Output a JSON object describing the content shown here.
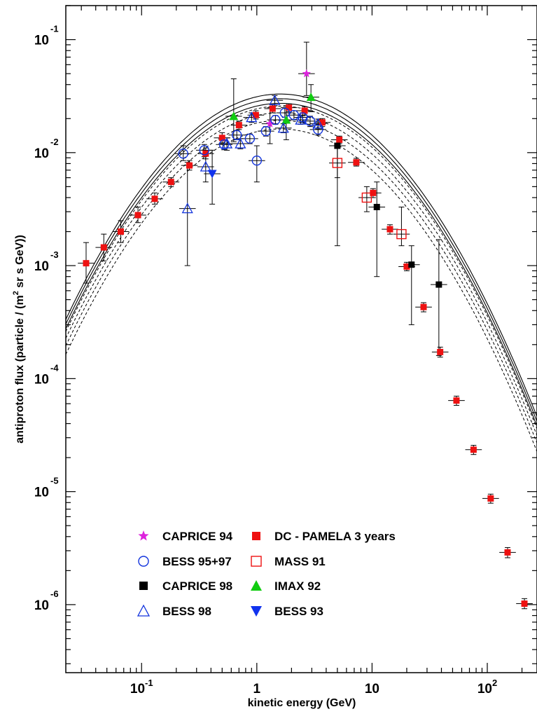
{
  "chart_data": {
    "type": "scatter",
    "xlabel": "kinetic energy (GeV)",
    "ylabel_parts": [
      "antiproton flux (particle / (m",
      "2",
      " sr s GeV))"
    ],
    "x_scale": "log",
    "y_scale": "log",
    "xlim": [
      0.022,
      270
    ],
    "ylim": [
      2.5e-07,
      0.2
    ],
    "x_ticks": [
      {
        "value": 0.1,
        "base": "10",
        "exp": "-1"
      },
      {
        "value": 1,
        "base": "1",
        "exp": ""
      },
      {
        "value": 10,
        "base": "10",
        "exp": ""
      },
      {
        "value": 100,
        "base": "10",
        "exp": "2"
      }
    ],
    "y_ticks": [
      {
        "value": 1e-06,
        "base": "10",
        "exp": "-6"
      },
      {
        "value": 1e-05,
        "base": "10",
        "exp": "-5"
      },
      {
        "value": 0.0001,
        "base": "10",
        "exp": "-4"
      },
      {
        "value": 0.001,
        "base": "10",
        "exp": "-3"
      },
      {
        "value": 0.01,
        "base": "10",
        "exp": "-2"
      },
      {
        "value": 0.1,
        "base": "10",
        "exp": "-1"
      }
    ],
    "grid": false,
    "legend_position": "bottom-left",
    "series": [
      {
        "name": "DC - PAMELA 3 years",
        "marker": "filled-square",
        "color": "#ee1111",
        "points": [
          [
            0.033,
            0.00105,
            0.0007,
            0.0016
          ],
          [
            0.047,
            0.00145,
            0.0011,
            0.0019
          ],
          [
            0.066,
            0.002,
            0.0016,
            0.0025
          ],
          [
            0.093,
            0.0028,
            0.0024,
            0.0033
          ],
          [
            0.13,
            0.0039,
            0.0035,
            0.0044
          ],
          [
            0.18,
            0.0055,
            0.005,
            0.006
          ],
          [
            0.26,
            0.0077,
            0.007,
            0.0085
          ],
          [
            0.36,
            0.0098,
            0.0088,
            0.011
          ],
          [
            0.5,
            0.0135,
            0.0122,
            0.015
          ],
          [
            0.7,
            0.0175,
            0.016,
            0.019
          ],
          [
            0.98,
            0.0215,
            0.0198,
            0.0235
          ],
          [
            1.37,
            0.0245,
            0.0225,
            0.0265
          ],
          [
            1.9,
            0.025,
            0.023,
            0.027
          ],
          [
            2.6,
            0.0235,
            0.0215,
            0.0255
          ],
          [
            3.7,
            0.0185,
            0.017,
            0.02
          ],
          [
            5.2,
            0.013,
            0.012,
            0.014
          ],
          [
            7.3,
            0.0082,
            0.0076,
            0.0089
          ],
          [
            10.2,
            0.0044,
            0.004,
            0.0048
          ],
          [
            14.3,
            0.0021,
            0.0019,
            0.0023
          ],
          [
            20,
            0.00098,
            0.0009,
            0.00107
          ],
          [
            28,
            0.00043,
            0.00039,
            0.00047
          ],
          [
            39,
            0.000172,
            0.000155,
            0.00019
          ],
          [
            54,
            6.4e-05,
            5.8e-05,
            7e-05
          ],
          [
            76,
            2.35e-05,
            2.13e-05,
            2.57e-05
          ],
          [
            107,
            8.7e-06,
            7.9e-06,
            9.5e-06
          ],
          [
            150,
            2.9e-06,
            2.6e-06,
            3.2e-06
          ],
          [
            210,
            1.02e-06,
            9.2e-07,
            1.13e-06
          ]
        ]
      },
      {
        "name": "CAPRICE 94",
        "marker": "star",
        "color": "#dd22dd",
        "points": [
          [
            2.7,
            0.05,
            0.032,
            0.095
          ],
          [
            1.3,
            0.018,
            0.012,
            0.025
          ]
        ]
      },
      {
        "name": "BESS 95+97",
        "marker": "open-circle",
        "color": "#1133dd",
        "points": [
          [
            0.23,
            0.0098,
            0.0085,
            0.0115
          ],
          [
            0.35,
            0.0105,
            0.0092,
            0.0118
          ],
          [
            0.52,
            0.0118,
            0.0106,
            0.013
          ],
          [
            0.67,
            0.0143,
            0.013,
            0.0157
          ],
          [
            0.87,
            0.0133,
            0.012,
            0.0146
          ],
          [
            1.0,
            0.0085,
            0.0055,
            0.0115
          ],
          [
            1.2,
            0.0155,
            0.014,
            0.017
          ],
          [
            1.45,
            0.0195,
            0.0178,
            0.0213
          ],
          [
            1.75,
            0.0225,
            0.0205,
            0.0245
          ],
          [
            2.1,
            0.0215,
            0.0195,
            0.0235
          ],
          [
            2.5,
            0.0205,
            0.0185,
            0.0225
          ],
          [
            2.9,
            0.019,
            0.017,
            0.021
          ],
          [
            3.4,
            0.016,
            0.0143,
            0.0178
          ]
        ]
      },
      {
        "name": "CAPRICE 98",
        "marker": "filled-square",
        "color": "#000000",
        "points": [
          [
            5.0,
            0.0115,
            0.0015,
            0.013
          ],
          [
            11,
            0.0033,
            0.0008,
            0.0055
          ],
          [
            22,
            0.00102,
            0.0003,
            0.0015
          ],
          [
            38,
            0.00068,
            0.00016,
            0.0017
          ]
        ]
      },
      {
        "name": "MASS 91",
        "marker": "open-square",
        "color": "#ee1111",
        "points": [
          [
            5.0,
            0.0081,
            0.006,
            0.011
          ],
          [
            9,
            0.004,
            0.003,
            0.005
          ],
          [
            18,
            0.0019,
            0.0015,
            0.0033
          ]
        ]
      },
      {
        "name": "IMAX 92",
        "marker": "filled-triangle-up",
        "color": "#11cc11",
        "points": [
          [
            0.63,
            0.021,
            0.0125,
            0.045
          ],
          [
            1.8,
            0.0195,
            0.013,
            0.026
          ],
          [
            2.95,
            0.031,
            0.023,
            0.04
          ]
        ]
      },
      {
        "name": "BESS 98",
        "marker": "open-triangle-up",
        "color": "#1133dd",
        "points": [
          [
            0.25,
            0.0032,
            0.001,
            0.0082
          ],
          [
            0.36,
            0.0075,
            0.0055,
            0.0095
          ],
          [
            0.55,
            0.012,
            0.0105,
            0.0135
          ],
          [
            0.72,
            0.012,
            0.0108,
            0.0133
          ],
          [
            0.9,
            0.0205,
            0.0185,
            0.0225
          ],
          [
            1.43,
            0.029,
            0.026,
            0.032
          ],
          [
            1.7,
            0.0165,
            0.015,
            0.018
          ],
          [
            2.4,
            0.0195,
            0.0178,
            0.0212
          ],
          [
            3.4,
            0.018,
            0.0162,
            0.0198
          ]
        ]
      },
      {
        "name": "BESS 93",
        "marker": "filled-triangle-down",
        "color": "#1133ee",
        "points": [
          [
            0.41,
            0.0065,
            0.0035,
            0.0105
          ]
        ]
      }
    ],
    "model_curves": {
      "solid_peaks": [
        0.033,
        0.03,
        0.0273
      ],
      "dashed_peaks": [
        0.0258,
        0.0225,
        0.0193,
        0.0162
      ],
      "peak_energy": 1.6
    },
    "legend": [
      {
        "series": 1,
        "label": "CAPRICE 94"
      },
      {
        "series": 0,
        "label": "DC - PAMELA 3 years"
      },
      {
        "series": 2,
        "label": "BESS 95+97"
      },
      {
        "series": 4,
        "label": "MASS 91"
      },
      {
        "series": 3,
        "label": "CAPRICE 98"
      },
      {
        "series": 5,
        "label": "IMAX 92"
      },
      {
        "series": 6,
        "label": "BESS 98"
      },
      {
        "series": 7,
        "label": "BESS 93"
      }
    ]
  }
}
